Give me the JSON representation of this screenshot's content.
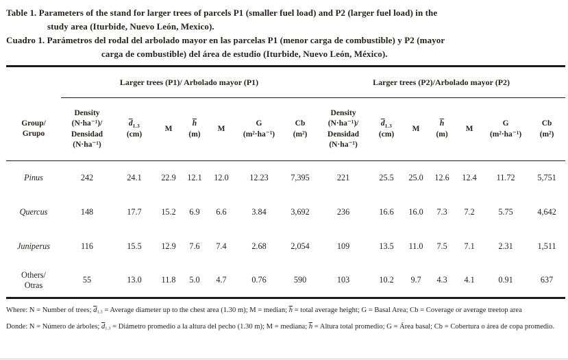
{
  "titles": {
    "en": {
      "line1": "Table 1. Parameters of the stand for larger trees of parcels P1 (smaller fuel load) and P2 (larger fuel load) in the",
      "line2": "study area (Iturbide, Nuevo León, Mexico)."
    },
    "es": {
      "line1": "Cuadro 1. Parámetros del rodal del arbolado mayor en las parcelas P1 (menor carga de combustible) y P2 (mayor",
      "line2": "carga de combustible) del área de estudio (Iturbide, Nuevo León, México)."
    }
  },
  "table": {
    "groups": {
      "p1": "Larger trees (P1)/ Arbolado mayor (P1)",
      "p2": "Larger trees (P2)/Arbolado mayor (P2)"
    },
    "columns": {
      "group": "Group/\nGrupo",
      "density": "Density\n(N·ha⁻¹)/\nDensidad\n(N·ha⁻¹)",
      "d_sym": "d",
      "d_sub": "1.3",
      "d_unit": "(cm)",
      "m": "M",
      "h_sym": "h",
      "h_unit": "(m)",
      "g": "G\n(m²·ha⁻¹)",
      "cb": "Cb\n(m²)"
    },
    "rows": [
      {
        "name": "Pinus",
        "values": [
          "242",
          "24.1",
          "22.9",
          "12.1",
          "12.0",
          "12.23",
          "7,395",
          "221",
          "25.5",
          "25.0",
          "12.6",
          "12.4",
          "11.72",
          "5,751"
        ]
      },
      {
        "name": "Quercus",
        "values": [
          "148",
          "17.7",
          "15.2",
          "6.9",
          "6.6",
          "3.84",
          "3,692",
          "236",
          "16.6",
          "16.0",
          "7.3",
          "7.2",
          "5.75",
          "4,642"
        ]
      },
      {
        "name": "Juniperus",
        "values": [
          "116",
          "15.5",
          "12.9",
          "7.6",
          "7.4",
          "2.68",
          "2,054",
          "109",
          "13.5",
          "11.0",
          "7.5",
          "7.1",
          "2.31",
          "1,511"
        ]
      },
      {
        "name": "Others/\nOtras",
        "values": [
          "55",
          "13.0",
          "11.8",
          "5.0",
          "4.7",
          "0.76",
          "590",
          "103",
          "10.2",
          "9.7",
          "4.3",
          "4.1",
          "0.91",
          "637"
        ]
      }
    ]
  },
  "footnotes": {
    "en": [
      {
        "t": "Where: N = Number of trees; "
      },
      {
        "t": "d",
        "s": "ovl"
      },
      {
        "t": "1.3",
        "s": "sub"
      },
      {
        "t": " = Average diameter up to the chest area (1.30 m); M = median; "
      },
      {
        "t": "h",
        "s": "ovl"
      },
      {
        "t": " = total average height; G = Basal Area; Cb = Coverage or average treetop area"
      }
    ],
    "es": [
      {
        "t": "Donde: N = Número de árboles; "
      },
      {
        "t": "d",
        "s": "ovl"
      },
      {
        "t": "1.3",
        "s": "sub"
      },
      {
        "t": " = Diámetro promedio a la altura del pecho (1.30 m); M = mediana; "
      },
      {
        "t": "h",
        "s": "ovl"
      },
      {
        "t": " = Altura total promedio; G = Área basal; Cb = Cobertura o área de copa promedio."
      }
    ]
  }
}
